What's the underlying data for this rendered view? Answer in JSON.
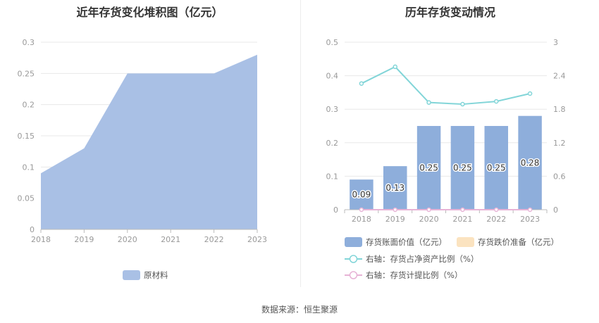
{
  "left_title": "近年存货变化堆积图（亿元）",
  "right_title": "历年存货变动情况",
  "source": "数据来源：恒生聚源",
  "chart_data": [
    {
      "type": "area",
      "title": "近年存货变化堆积图（亿元）",
      "x": [
        "2018",
        "2019",
        "2020",
        "2021",
        "2022",
        "2023"
      ],
      "yticks": [
        "0",
        "0.05",
        "0.1",
        "0.15",
        "0.2",
        "0.25",
        "0.3"
      ],
      "ylim": [
        0,
        0.3
      ],
      "grid": true,
      "legend_position": "bottom",
      "series": [
        {
          "name": "原材料",
          "values": [
            0.09,
            0.13,
            0.25,
            0.25,
            0.25,
            0.28
          ],
          "color": "#a9c0e5"
        }
      ]
    },
    {
      "type": "bar",
      "title": "历年存货变动情况",
      "categories": [
        "2018",
        "2019",
        "2020",
        "2021",
        "2022",
        "2023"
      ],
      "yticks_left": [
        "0",
        "0.1",
        "0.2",
        "0.3",
        "0.4",
        "0.5"
      ],
      "yticks_right": [
        "0",
        "0.6",
        "1.2",
        "1.8",
        "2.4",
        "3"
      ],
      "ylim_left": [
        0,
        0.5
      ],
      "ylim_right": [
        0,
        3
      ],
      "grid": true,
      "legend_position": "bottom",
      "bar_series": [
        {
          "name": "存货账面价值（亿元）",
          "values": [
            0.09,
            0.13,
            0.25,
            0.25,
            0.25,
            0.28
          ],
          "labels": [
            "0.09",
            "0.13",
            "0.25",
            "0.25",
            "0.25",
            "0.28"
          ],
          "color": "#8eaedb"
        },
        {
          "name": "存货跌价准备（亿元）",
          "values": [
            0,
            0,
            0,
            0,
            0,
            0
          ],
          "color": "#fbe3c0"
        }
      ],
      "line_series": [
        {
          "name": "右轴：存货占净资产比例（%）",
          "values": [
            2.26,
            2.56,
            1.92,
            1.89,
            1.94,
            2.08
          ],
          "color": "#82d5d8"
        },
        {
          "name": "右轴：存货计提比例（%）",
          "values": [
            0,
            0,
            0,
            0,
            0,
            0
          ],
          "color": "#e7b3d6"
        }
      ]
    }
  ]
}
